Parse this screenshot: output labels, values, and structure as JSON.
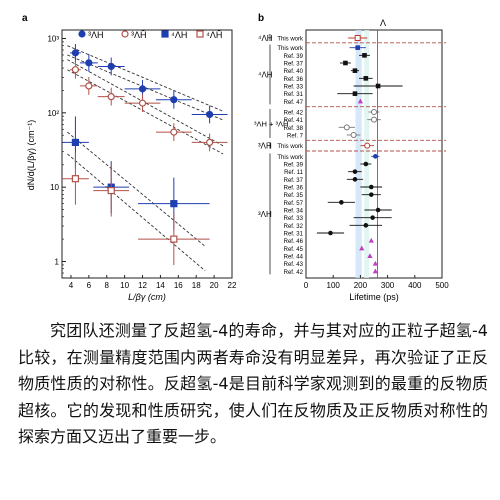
{
  "panel_a": {
    "label": "a",
    "legend": [
      {
        "sym": "³ΛH",
        "marker": "circle",
        "fill": "#1f3fb0",
        "stroke": "#1f3fb0"
      },
      {
        "sym": "³ΛH̄",
        "marker": "circle",
        "fill": "#fff",
        "stroke": "#b0524a"
      },
      {
        "sym": "⁴ΛH",
        "marker": "square",
        "fill": "#1f3fb0",
        "stroke": "#1f3fb0"
      },
      {
        "sym": "⁴ΛH̄",
        "marker": "square",
        "fill": "#fff",
        "stroke": "#b0524a"
      }
    ],
    "ylabel": "dN/d(L/βγ) (cm⁻¹)",
    "xlabel": "L/βγ (cm)",
    "ytick_labels": [
      "10³",
      "10²",
      "10",
      "1"
    ],
    "xtick_labels": [
      "4",
      "6",
      "8",
      "10",
      "12",
      "14",
      "16",
      "18",
      "20",
      "22"
    ]
  },
  "chart_data": [
    {
      "type": "scatter",
      "xlabel": "L/βγ (cm)",
      "ylabel": "dN/d(L/βγ) (cm⁻¹)",
      "yscale": "log",
      "xlim": [
        3,
        22
      ],
      "ylim": [
        0.6,
        1300
      ],
      "series": [
        {
          "name": "³ΛH",
          "color": "#1f3fb0",
          "marker": "circle",
          "filled": true,
          "points": [
            [
              4.5,
              640,
              0.6
            ],
            [
              6,
              470,
              1
            ],
            [
              8.5,
              420,
              1.5
            ],
            [
              12,
              210,
              2
            ],
            [
              15.5,
              150,
              2
            ],
            [
              19.5,
              95,
              2
            ]
          ]
        },
        {
          "name": "³ΛH̄",
          "color": "#b0524a",
          "marker": "circle",
          "filled": false,
          "points": [
            [
              4.5,
              380,
              0.6
            ],
            [
              6,
              230,
              1
            ],
            [
              8.5,
              165,
              1.5
            ],
            [
              12,
              135,
              2
            ],
            [
              15.5,
              55,
              2
            ],
            [
              19.5,
              40,
              2
            ]
          ]
        },
        {
          "name": "⁴ΛH",
          "color": "#1f3fb0",
          "marker": "square",
          "filled": true,
          "points": [
            [
              4.5,
              40,
              1.5
            ],
            [
              8.5,
              10,
              2
            ],
            [
              15.5,
              6,
              4
            ]
          ]
        },
        {
          "name": "⁴ΛH̄",
          "color": "#b0524a",
          "marker": "square",
          "filled": false,
          "points": [
            [
              4.5,
              13,
              1.5
            ],
            [
              8.5,
              9,
              2
            ],
            [
              15.5,
              2,
              4
            ]
          ]
        }
      ]
    },
    {
      "type": "scatter",
      "xlabel": "Lifetime (ps)",
      "xlim": [
        0,
        500
      ],
      "xtick_labels": [
        "0",
        "100",
        "200",
        "300",
        "400",
        "500"
      ],
      "reference_line": "Λ",
      "rows": [
        {
          "label": "This work",
          "value": 190,
          "err": 35,
          "group": "4H-bar",
          "color": "#c0392b",
          "marker": "square-open"
        },
        {
          "label": "This work",
          "value": 190,
          "err": 30,
          "group": "4H",
          "color": "#1f3fb0",
          "marker": "square"
        },
        {
          "label": "Ref. 39",
          "value": 215,
          "err": 20,
          "group": "4H",
          "color": "#111",
          "marker": "square"
        },
        {
          "label": "Ref. 37",
          "value": 145,
          "err": 20,
          "group": "4H",
          "color": "#111",
          "marker": "square"
        },
        {
          "label": "Ref. 40",
          "value": 180,
          "err": 15,
          "group": "4H",
          "color": "#111",
          "marker": "square"
        },
        {
          "label": "Ref. 36",
          "value": 220,
          "err": 25,
          "group": "4H",
          "color": "#111",
          "marker": "square"
        },
        {
          "label": "Ref. 33",
          "value": 265,
          "err": 90,
          "group": "4H",
          "color": "#111",
          "marker": "square"
        },
        {
          "label": "Ref. 31",
          "value": 180,
          "err": 65,
          "group": "4H",
          "color": "#111",
          "marker": "square"
        },
        {
          "label": "Ref. 47",
          "value": 200,
          "err": 5,
          "group": "4H",
          "color": "#c040c0",
          "marker": "triangle"
        },
        {
          "label": "Ref. 42",
          "value": 250,
          "err": 20,
          "group": "3H+3Hbar",
          "color": "#777",
          "marker": "circle-open"
        },
        {
          "label": "Ref. 41",
          "value": 250,
          "err": 25,
          "group": "3H+3Hbar",
          "color": "#777",
          "marker": "circle-open"
        },
        {
          "label": "Ref. 38",
          "value": 150,
          "err": 30,
          "group": "3H+3Hbar",
          "color": "#777",
          "marker": "circle-open"
        },
        {
          "label": "Ref. 7",
          "value": 175,
          "err": 25,
          "group": "3H+3Hbar",
          "color": "#777",
          "marker": "circle-open"
        },
        {
          "label": "This work",
          "value": 225,
          "err": 25,
          "group": "3H-bar",
          "color": "#c0392b",
          "marker": "circle-open"
        },
        {
          "label": "This work",
          "value": 255,
          "err": 15,
          "group": "3H",
          "color": "#1f3fb0",
          "marker": "circle"
        },
        {
          "label": "Ref. 39",
          "value": 220,
          "err": 20,
          "group": "3H",
          "color": "#111",
          "marker": "circle"
        },
        {
          "label": "Ref. 11",
          "value": 180,
          "err": 25,
          "group": "3H",
          "color": "#111",
          "marker": "circle"
        },
        {
          "label": "Ref. 37",
          "value": 180,
          "err": 30,
          "group": "3H",
          "color": "#111",
          "marker": "circle"
        },
        {
          "label": "Ref. 36",
          "value": 240,
          "err": 40,
          "group": "3H",
          "color": "#111",
          "marker": "circle"
        },
        {
          "label": "Ref. 35",
          "value": 240,
          "err": 35,
          "group": "3H",
          "color": "#111",
          "marker": "circle"
        },
        {
          "label": "Ref. 57",
          "value": 130,
          "err": 50,
          "group": "3H",
          "color": "#111",
          "marker": "circle"
        },
        {
          "label": "Ref. 34",
          "value": 265,
          "err": 50,
          "group": "3H",
          "color": "#111",
          "marker": "circle"
        },
        {
          "label": "Ref. 33",
          "value": 245,
          "err": 70,
          "group": "3H",
          "color": "#111",
          "marker": "circle"
        },
        {
          "label": "Ref. 32",
          "value": 220,
          "err": 60,
          "group": "3H",
          "color": "#111",
          "marker": "circle"
        },
        {
          "label": "Ref. 31",
          "value": 90,
          "err": 50,
          "group": "3H",
          "color": "#111",
          "marker": "circle"
        },
        {
          "label": "Ref. 46",
          "value": 240,
          "err": 0,
          "group": "3H",
          "color": "#c040c0",
          "marker": "triangle"
        },
        {
          "label": "Ref. 45",
          "value": 205,
          "err": 0,
          "group": "3H",
          "color": "#c040c0",
          "marker": "triangle"
        },
        {
          "label": "Ref. 44",
          "value": 235,
          "err": 0,
          "group": "3H",
          "color": "#c040c0",
          "marker": "triangle"
        },
        {
          "label": "Ref. 43",
          "value": 255,
          "err": 0,
          "group": "3H",
          "color": "#c040c0",
          "marker": "triangle"
        },
        {
          "label": "Ref. 42",
          "value": 255,
          "err": 0,
          "group": "3H",
          "color": "#c040c0",
          "marker": "triangle"
        }
      ]
    }
  ],
  "panel_b": {
    "label": "b",
    "xlabel": "Lifetime (ps)",
    "lambda_label": "Λ",
    "group_labels": {
      "g4bar": "⁴ΛH̄",
      "g4": "⁴ΛH",
      "g33": "³ΛH + ³ΛH̄",
      "g3bar": "³ΛH̄",
      "g3": "³ΛH"
    }
  },
  "paragraph": "究团队还测量了反超氢-4的寿命，并与其对应的正粒子超氢-4比较，在测量精度范围内两者寿命没有明显差异，再次验证了正反物质性质的对称性。反超氢-4是目前科学家观测到的最重的反物质超核。它的发现和性质研究，使人们在反物质及正反物质对称性的探索方面又迈出了重要一步。"
}
